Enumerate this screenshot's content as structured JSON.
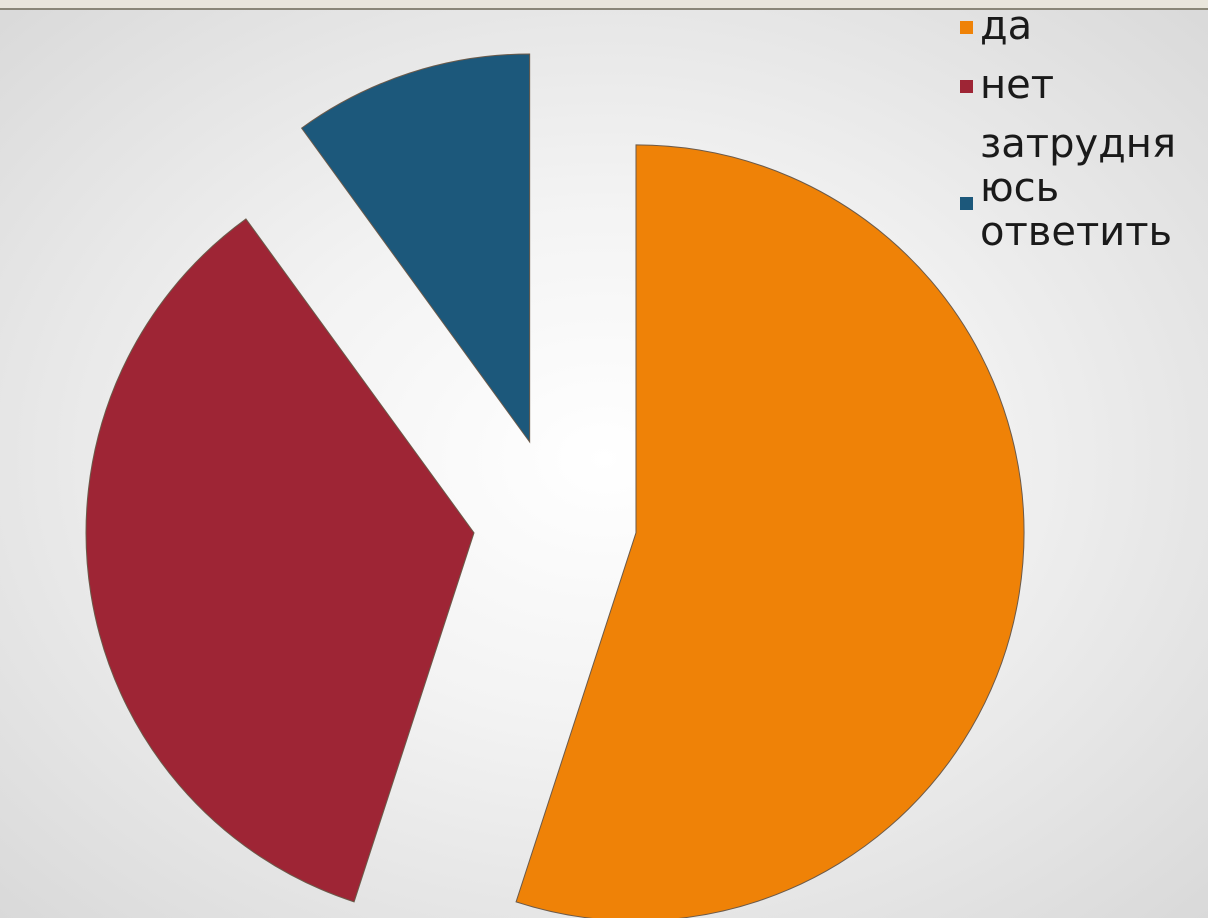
{
  "chart_data": {
    "type": "pie",
    "title": "",
    "exploded": true,
    "legend_position": "top-right",
    "slices": [
      {
        "label": "да",
        "value": 55,
        "color": "#ef8207"
      },
      {
        "label": "нет",
        "value": 35,
        "color": "#9e2535"
      },
      {
        "label": "затрудняюсь ответить",
        "value": 10,
        "color": "#1c587b"
      }
    ]
  },
  "legend": {
    "items": [
      {
        "text": "да",
        "color": "#ef8207"
      },
      {
        "text": "нет",
        "color": "#9e2535"
      },
      {
        "text": "затрудня\nюсь\nответить",
        "color": "#1c587b"
      }
    ]
  }
}
